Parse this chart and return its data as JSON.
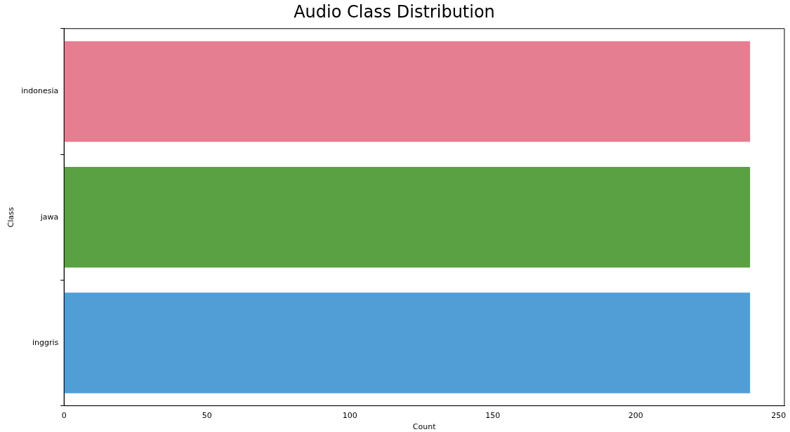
{
  "chart_data": {
    "type": "bar",
    "orientation": "horizontal",
    "title": "Audio Class Distribution",
    "xlabel": "Count",
    "ylabel": "Class",
    "categories": [
      "indonesia",
      "jawa",
      "inggris"
    ],
    "values": [
      240,
      240,
      240
    ],
    "colors": [
      "#e67e91",
      "#59a142",
      "#519ed6"
    ],
    "xlim": [
      0,
      252
    ],
    "xticks": [
      0,
      50,
      100,
      150,
      200,
      250
    ],
    "grid": false,
    "legend": false
  }
}
